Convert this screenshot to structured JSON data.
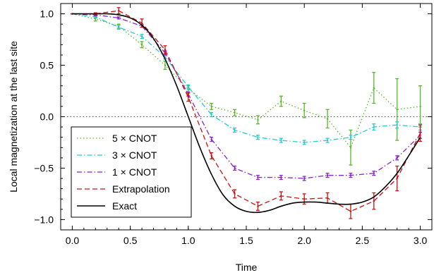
{
  "chart_data": {
    "type": "line",
    "title": "",
    "xlabel": "Time",
    "ylabel": "Local magnetization at the last site",
    "xlim": [
      -0.1,
      3.1
    ],
    "ylim": [
      -1.1,
      1.1
    ],
    "x_ticks": [
      "0.0",
      "0.5",
      "1.0",
      "1.5",
      "2.0",
      "2.5",
      "3.0"
    ],
    "y_ticks": [
      "1.0",
      "0.5",
      "0.0",
      "-0.5",
      "-1.0"
    ],
    "grid": false,
    "reference_line": {
      "y": 0.0,
      "style": "dotted"
    },
    "legend": {
      "placement": "lower-left"
    },
    "series": [
      {
        "name": "5 × CNOT",
        "color": "#55bb22",
        "dash": "dotted",
        "x": [
          0.0,
          0.2,
          0.4,
          0.6,
          0.8,
          1.0,
          1.2,
          1.4,
          1.6,
          1.8,
          2.0,
          2.2,
          2.4,
          2.6,
          2.8,
          3.0
        ],
        "y": [
          1.0,
          0.95,
          0.88,
          0.7,
          0.5,
          0.27,
          0.1,
          0.04,
          -0.03,
          0.15,
          0.06,
          -0.02,
          -0.3,
          0.28,
          0.07,
          0.1
        ],
        "err": [
          0.0,
          0.02,
          0.02,
          0.03,
          0.04,
          0.03,
          0.03,
          0.03,
          0.04,
          0.05,
          0.07,
          0.09,
          0.17,
          0.15,
          0.3,
          0.2
        ]
      },
      {
        "name": "3 × CNOT",
        "color": "#22cccc",
        "dash": "dashdot",
        "x": [
          0.0,
          0.2,
          0.4,
          0.6,
          0.8,
          1.0,
          1.2,
          1.4,
          1.6,
          1.8,
          2.0,
          2.2,
          2.4,
          2.6,
          2.8,
          3.0
        ],
        "y": [
          1.0,
          0.97,
          0.87,
          0.78,
          0.58,
          0.29,
          0.02,
          -0.13,
          -0.2,
          -0.23,
          -0.25,
          -0.23,
          -0.2,
          -0.1,
          -0.08,
          -0.1
        ],
        "err": [
          0.0,
          0.01,
          0.02,
          0.02,
          0.02,
          0.02,
          0.02,
          0.02,
          0.02,
          0.02,
          0.02,
          0.02,
          0.02,
          0.03,
          0.03,
          0.03
        ]
      },
      {
        "name": "1 × CNOT",
        "color": "#8822cc",
        "dash": "dashdot",
        "x": [
          0.0,
          0.2,
          0.4,
          0.6,
          0.8,
          1.0,
          1.2,
          1.4,
          1.6,
          1.8,
          2.0,
          2.2,
          2.4,
          2.6,
          2.8,
          3.0
        ],
        "y": [
          1.0,
          0.99,
          0.96,
          0.88,
          0.62,
          0.22,
          -0.22,
          -0.5,
          -0.59,
          -0.59,
          -0.6,
          -0.57,
          -0.57,
          -0.55,
          -0.4,
          -0.18
        ],
        "err": [
          0.0,
          0.01,
          0.01,
          0.01,
          0.02,
          0.02,
          0.02,
          0.02,
          0.02,
          0.02,
          0.02,
          0.02,
          0.02,
          0.02,
          0.02,
          0.03
        ]
      },
      {
        "name": "Extrapolation",
        "color": "#cc1111",
        "dash": "dashed",
        "x": [
          0.0,
          0.2,
          0.4,
          0.6,
          0.8,
          1.0,
          1.2,
          1.4,
          1.6,
          1.8,
          2.0,
          2.2,
          2.4,
          2.6,
          2.8,
          3.0
        ],
        "y": [
          1.0,
          1.0,
          1.03,
          0.91,
          0.65,
          0.19,
          -0.38,
          -0.75,
          -0.87,
          -0.77,
          -0.8,
          -0.79,
          -0.92,
          -0.82,
          -0.6,
          -0.16
        ],
        "err": [
          0.0,
          0.01,
          0.03,
          0.04,
          0.04,
          0.04,
          0.03,
          0.04,
          0.04,
          0.04,
          0.05,
          0.05,
          0.07,
          0.08,
          0.12,
          0.08
        ]
      }
    ],
    "exact": {
      "name": "Exact",
      "color": "#000000",
      "x": [
        0.0,
        0.1,
        0.2,
        0.3,
        0.4,
        0.5,
        0.6,
        0.7,
        0.8,
        0.9,
        1.0,
        1.1,
        1.2,
        1.3,
        1.4,
        1.5,
        1.6,
        1.7,
        1.8,
        1.9,
        2.0,
        2.1,
        2.2,
        2.3,
        2.4,
        2.5,
        2.6,
        2.7,
        2.8,
        2.9,
        3.0
      ],
      "y": [
        1.0,
        1.0,
        1.0,
        1.0,
        0.99,
        0.96,
        0.89,
        0.76,
        0.56,
        0.3,
        0.0,
        -0.3,
        -0.56,
        -0.76,
        -0.87,
        -0.92,
        -0.93,
        -0.91,
        -0.87,
        -0.84,
        -0.83,
        -0.83,
        -0.84,
        -0.85,
        -0.85,
        -0.83,
        -0.78,
        -0.68,
        -0.55,
        -0.38,
        -0.2
      ]
    }
  }
}
